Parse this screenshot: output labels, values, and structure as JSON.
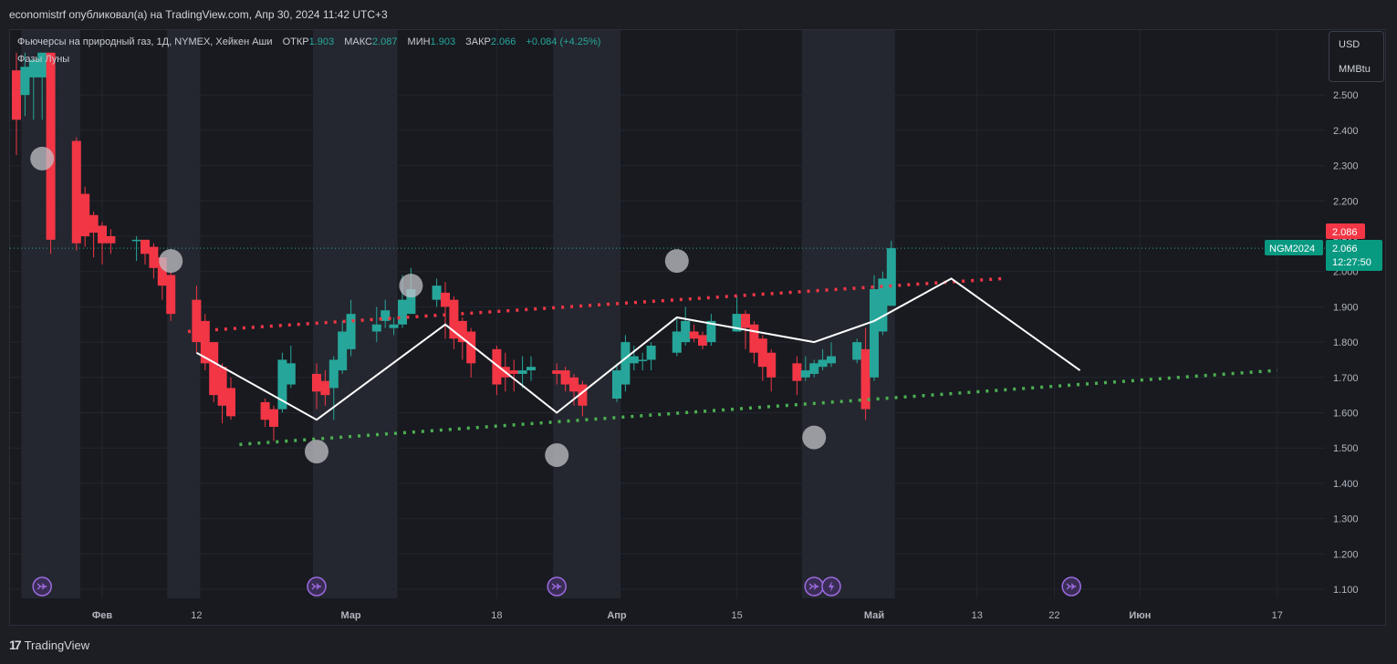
{
  "header": {
    "publisher_line": "economistrf опубликовал(а) на TradingView.com, Апр 30, 2024 11:42 UTC+3"
  },
  "legend": {
    "symbol_title": "Фьючерсы на природный газ, 1Д, NYMEX, Хейкен Аши",
    "open_label": "ОТКР",
    "open_value": "1.903",
    "high_label": "МАКС",
    "high_value": "2.087",
    "low_label": "МИН",
    "low_value": "1.903",
    "close_label": "ЗАКР",
    "close_value": "2.066",
    "change": "+0.084 (+4.25%)",
    "indicator": "Фазы Луны"
  },
  "units": {
    "currency": "USD",
    "unit": "MMBtu"
  },
  "price_labels": {
    "high": "2.086",
    "ticker": "NGM2024",
    "last": "2.066",
    "countdown": "12:27:50"
  },
  "footer": {
    "brand": "TradingView"
  },
  "colors": {
    "up": "#26a69a",
    "down": "#f23645",
    "up_bright": "#089981",
    "background": "#181a20",
    "resistance": "#f23645",
    "support": "#4caf50",
    "pattern": "#ffffff",
    "moon": "#c2c2c8",
    "event_icon": "#9c6ade"
  },
  "chart_data": {
    "type": "candlestick",
    "style": "heikin-ashi",
    "grid": true,
    "y_range": [
      1.06,
      2.62
    ],
    "y_ticks": [
      "2.500",
      "2.400",
      "2.300",
      "2.200",
      "2.100",
      "2.000",
      "1.900",
      "1.800",
      "1.700",
      "1.600",
      "1.500",
      "1.400",
      "1.300",
      "1.200",
      "1.100"
    ],
    "x_tick_labels": [
      {
        "label": "Фев",
        "date": "2024-02-01"
      },
      {
        "label": "12",
        "date": "2024-02-12"
      },
      {
        "label": "Мар",
        "date": "2024-03-01"
      },
      {
        "label": "18",
        "date": "2024-03-18"
      },
      {
        "label": "Апр",
        "date": "2024-04-01"
      },
      {
        "label": "15",
        "date": "2024-04-15"
      },
      {
        "label": "Май",
        "date": "2024-05-01"
      },
      {
        "label": "13",
        "date": "2024-05-13"
      },
      {
        "label": "22",
        "date": "2024-05-22"
      },
      {
        "label": "Июн",
        "date": "2024-06-01"
      },
      {
        "label": "17",
        "date": "2024-06-17"
      }
    ],
    "candles": [
      {
        "d": "2024-01-22",
        "o": 2.57,
        "h": 2.62,
        "l": 2.33,
        "c": 2.43
      },
      {
        "d": "2024-01-23",
        "o": 2.5,
        "h": 2.62,
        "l": 2.44,
        "c": 2.58
      },
      {
        "d": "2024-01-24",
        "o": 2.55,
        "h": 2.6,
        "l": 2.43,
        "c": 2.6
      },
      {
        "d": "2024-01-25",
        "o": 2.55,
        "h": 2.62,
        "l": 2.43,
        "c": 2.62
      },
      {
        "d": "2024-01-26",
        "o": 2.62,
        "h": 2.62,
        "l": 2.05,
        "c": 2.09
      },
      {
        "d": "2024-01-29",
        "o": 2.37,
        "h": 2.38,
        "l": 2.06,
        "c": 2.08
      },
      {
        "d": "2024-01-30",
        "o": 2.22,
        "h": 2.24,
        "l": 2.07,
        "c": 2.1
      },
      {
        "d": "2024-01-31",
        "o": 2.16,
        "h": 2.17,
        "l": 2.04,
        "c": 2.11
      },
      {
        "d": "2024-02-01",
        "o": 2.13,
        "h": 2.14,
        "l": 2.02,
        "c": 2.08
      },
      {
        "d": "2024-02-02",
        "o": 2.1,
        "h": 2.12,
        "l": 2.05,
        "c": 2.08
      },
      {
        "d": "2024-02-05",
        "o": 2.09,
        "h": 2.1,
        "l": 2.03,
        "c": 2.09
      },
      {
        "d": "2024-02-06",
        "o": 2.09,
        "h": 2.09,
        "l": 2.02,
        "c": 2.05
      },
      {
        "d": "2024-02-07",
        "o": 2.07,
        "h": 2.08,
        "l": 1.98,
        "c": 2.01
      },
      {
        "d": "2024-02-08",
        "o": 2.04,
        "h": 2.04,
        "l": 1.92,
        "c": 1.96
      },
      {
        "d": "2024-02-09",
        "o": 1.99,
        "h": 2.0,
        "l": 1.86,
        "c": 1.88
      },
      {
        "d": "2024-02-12",
        "o": 1.92,
        "h": 1.96,
        "l": 1.77,
        "c": 1.8
      },
      {
        "d": "2024-02-13",
        "o": 1.86,
        "h": 1.88,
        "l": 1.72,
        "c": 1.74
      },
      {
        "d": "2024-02-14",
        "o": 1.8,
        "h": 1.8,
        "l": 1.63,
        "c": 1.65
      },
      {
        "d": "2024-02-15",
        "o": 1.73,
        "h": 1.74,
        "l": 1.57,
        "c": 1.62
      },
      {
        "d": "2024-02-16",
        "o": 1.67,
        "h": 1.7,
        "l": 1.58,
        "c": 1.59
      },
      {
        "d": "2024-02-20",
        "o": 1.63,
        "h": 1.64,
        "l": 1.56,
        "c": 1.58
      },
      {
        "d": "2024-02-21",
        "o": 1.61,
        "h": 1.62,
        "l": 1.52,
        "c": 1.56
      },
      {
        "d": "2024-02-22",
        "o": 1.61,
        "h": 1.77,
        "l": 1.6,
        "c": 1.75
      },
      {
        "d": "2024-02-23",
        "o": 1.68,
        "h": 1.79,
        "l": 1.67,
        "c": 1.74
      },
      {
        "d": "2024-02-26",
        "o": 1.71,
        "h": 1.74,
        "l": 1.61,
        "c": 1.66
      },
      {
        "d": "2024-02-27",
        "o": 1.69,
        "h": 1.72,
        "l": 1.62,
        "c": 1.65
      },
      {
        "d": "2024-02-28",
        "o": 1.67,
        "h": 1.76,
        "l": 1.58,
        "c": 1.75
      },
      {
        "d": "2024-02-29",
        "o": 1.72,
        "h": 1.86,
        "l": 1.71,
        "c": 1.83
      },
      {
        "d": "2024-03-01",
        "o": 1.78,
        "h": 1.92,
        "l": 1.76,
        "c": 1.88
      },
      {
        "d": "2024-03-04",
        "o": 1.83,
        "h": 1.9,
        "l": 1.8,
        "c": 1.85
      },
      {
        "d": "2024-03-05",
        "o": 1.86,
        "h": 1.92,
        "l": 1.84,
        "c": 1.89
      },
      {
        "d": "2024-03-06",
        "o": 1.84,
        "h": 1.87,
        "l": 1.82,
        "c": 1.85
      },
      {
        "d": "2024-03-07",
        "o": 1.85,
        "h": 1.99,
        "l": 1.84,
        "c": 1.92
      },
      {
        "d": "2024-03-08",
        "o": 1.88,
        "h": 2.01,
        "l": 1.88,
        "c": 1.95
      },
      {
        "d": "2024-03-11",
        "o": 1.92,
        "h": 1.98,
        "l": 1.9,
        "c": 1.96
      },
      {
        "d": "2024-03-12",
        "o": 1.94,
        "h": 1.97,
        "l": 1.81,
        "c": 1.9
      },
      {
        "d": "2024-03-13",
        "o": 1.92,
        "h": 1.93,
        "l": 1.78,
        "c": 1.81
      },
      {
        "d": "2024-03-14",
        "o": 1.86,
        "h": 1.87,
        "l": 1.75,
        "c": 1.8
      },
      {
        "d": "2024-03-15",
        "o": 1.83,
        "h": 1.84,
        "l": 1.7,
        "c": 1.74
      },
      {
        "d": "2024-03-18",
        "o": 1.78,
        "h": 1.79,
        "l": 1.65,
        "c": 1.68
      },
      {
        "d": "2024-03-19",
        "o": 1.73,
        "h": 1.77,
        "l": 1.66,
        "c": 1.7
      },
      {
        "d": "2024-03-20",
        "o": 1.72,
        "h": 1.75,
        "l": 1.66,
        "c": 1.71
      },
      {
        "d": "2024-03-21",
        "o": 1.71,
        "h": 1.76,
        "l": 1.67,
        "c": 1.72
      },
      {
        "d": "2024-03-22",
        "o": 1.72,
        "h": 1.76,
        "l": 1.69,
        "c": 1.73
      },
      {
        "d": "2024-03-25",
        "o": 1.72,
        "h": 1.74,
        "l": 1.68,
        "c": 1.71
      },
      {
        "d": "2024-03-26",
        "o": 1.72,
        "h": 1.73,
        "l": 1.66,
        "c": 1.68
      },
      {
        "d": "2024-03-27",
        "o": 1.7,
        "h": 1.71,
        "l": 1.62,
        "c": 1.66
      },
      {
        "d": "2024-03-28",
        "o": 1.68,
        "h": 1.69,
        "l": 1.59,
        "c": 1.62
      },
      {
        "d": "2024-04-01",
        "o": 1.64,
        "h": 1.74,
        "l": 1.63,
        "c": 1.72
      },
      {
        "d": "2024-04-02",
        "o": 1.68,
        "h": 1.82,
        "l": 1.66,
        "c": 1.8
      },
      {
        "d": "2024-04-03",
        "o": 1.74,
        "h": 1.79,
        "l": 1.72,
        "c": 1.76
      },
      {
        "d": "2024-04-04",
        "o": 1.75,
        "h": 1.77,
        "l": 1.72,
        "c": 1.75
      },
      {
        "d": "2024-04-05",
        "o": 1.75,
        "h": 1.8,
        "l": 1.72,
        "c": 1.79
      },
      {
        "d": "2024-04-08",
        "o": 1.77,
        "h": 1.87,
        "l": 1.76,
        "c": 1.83
      },
      {
        "d": "2024-04-09",
        "o": 1.8,
        "h": 1.9,
        "l": 1.79,
        "c": 1.86
      },
      {
        "d": "2024-04-10",
        "o": 1.83,
        "h": 1.85,
        "l": 1.8,
        "c": 1.81
      },
      {
        "d": "2024-04-11",
        "o": 1.82,
        "h": 1.83,
        "l": 1.78,
        "c": 1.79
      },
      {
        "d": "2024-04-12",
        "o": 1.8,
        "h": 1.88,
        "l": 1.79,
        "c": 1.86
      },
      {
        "d": "2024-04-15",
        "o": 1.83,
        "h": 1.93,
        "l": 1.83,
        "c": 1.88
      },
      {
        "d": "2024-04-16",
        "o": 1.88,
        "h": 1.89,
        "l": 1.78,
        "c": 1.84
      },
      {
        "d": "2024-04-17",
        "o": 1.85,
        "h": 1.86,
        "l": 1.74,
        "c": 1.77
      },
      {
        "d": "2024-04-18",
        "o": 1.81,
        "h": 1.82,
        "l": 1.69,
        "c": 1.73
      },
      {
        "d": "2024-04-19",
        "o": 1.77,
        "h": 1.78,
        "l": 1.66,
        "c": 1.7
      },
      {
        "d": "2024-04-22",
        "o": 1.74,
        "h": 1.76,
        "l": 1.65,
        "c": 1.69
      },
      {
        "d": "2024-04-23",
        "o": 1.7,
        "h": 1.76,
        "l": 1.69,
        "c": 1.72
      },
      {
        "d": "2024-04-24",
        "o": 1.71,
        "h": 1.75,
        "l": 1.7,
        "c": 1.74
      },
      {
        "d": "2024-04-25",
        "o": 1.73,
        "h": 1.78,
        "l": 1.72,
        "c": 1.75
      },
      {
        "d": "2024-04-26",
        "o": 1.74,
        "h": 1.8,
        "l": 1.73,
        "c": 1.76
      },
      {
        "d": "2024-04-29",
        "o": 1.75,
        "h": 1.81,
        "l": 1.74,
        "c": 1.8
      },
      {
        "d": "2024-04-30",
        "o": 1.78,
        "h": 1.84,
        "l": 1.58,
        "c": 1.61
      },
      {
        "d": "2024-05-01",
        "o": 1.7,
        "h": 1.99,
        "l": 1.69,
        "c": 1.95
      },
      {
        "d": "2024-05-02",
        "o": 1.83,
        "h": 2.0,
        "l": 1.82,
        "c": 1.98
      },
      {
        "d": "2024-05-03",
        "o": 1.903,
        "h": 2.087,
        "l": 1.903,
        "c": 2.066
      }
    ],
    "shaded_periods": [
      [
        "2024-01-23",
        "2024-01-29"
      ],
      [
        "2024-02-09",
        "2024-02-12"
      ],
      [
        "2024-02-26",
        "2024-03-06"
      ],
      [
        "2024-03-25",
        "2024-04-01"
      ],
      [
        "2024-04-23",
        "2024-05-03"
      ]
    ],
    "moon_phases": [
      {
        "d": "2024-01-25",
        "price": 2.32
      },
      {
        "d": "2024-02-09",
        "price": 2.03
      },
      {
        "d": "2024-02-26",
        "price": 1.49
      },
      {
        "d": "2024-03-08",
        "price": 1.96
      },
      {
        "d": "2024-03-25",
        "price": 1.48
      },
      {
        "d": "2024-04-08",
        "price": 2.03
      },
      {
        "d": "2024-04-24",
        "price": 1.53
      }
    ],
    "pattern_line": [
      {
        "d": "2024-02-12",
        "price": 1.77
      },
      {
        "d": "2024-02-26",
        "price": 1.58
      },
      {
        "d": "2024-03-12",
        "price": 1.85
      },
      {
        "d": "2024-03-25",
        "price": 1.6
      },
      {
        "d": "2024-04-08",
        "price": 1.87
      },
      {
        "d": "2024-04-24",
        "price": 1.8
      },
      {
        "d": "2024-05-01",
        "price": 1.86
      },
      {
        "d": "2024-05-10",
        "price": 1.98
      },
      {
        "d": "2024-05-25",
        "price": 1.72
      }
    ],
    "resistance_line": [
      {
        "d": "2024-02-11",
        "price": 1.83
      },
      {
        "d": "2024-05-16",
        "price": 1.98
      }
    ],
    "support_line": [
      {
        "d": "2024-02-17",
        "price": 1.51
      },
      {
        "d": "2024-06-17",
        "price": 1.72
      }
    ],
    "last_price": 2.066,
    "event_icons": [
      {
        "d": "2024-01-25",
        "type": "forward"
      },
      {
        "d": "2024-02-26",
        "type": "forward"
      },
      {
        "d": "2024-03-25",
        "type": "forward"
      },
      {
        "d": "2024-04-24",
        "type": "forward"
      },
      {
        "d": "2024-04-26",
        "type": "lightning"
      },
      {
        "d": "2024-05-24",
        "type": "forward"
      }
    ]
  }
}
